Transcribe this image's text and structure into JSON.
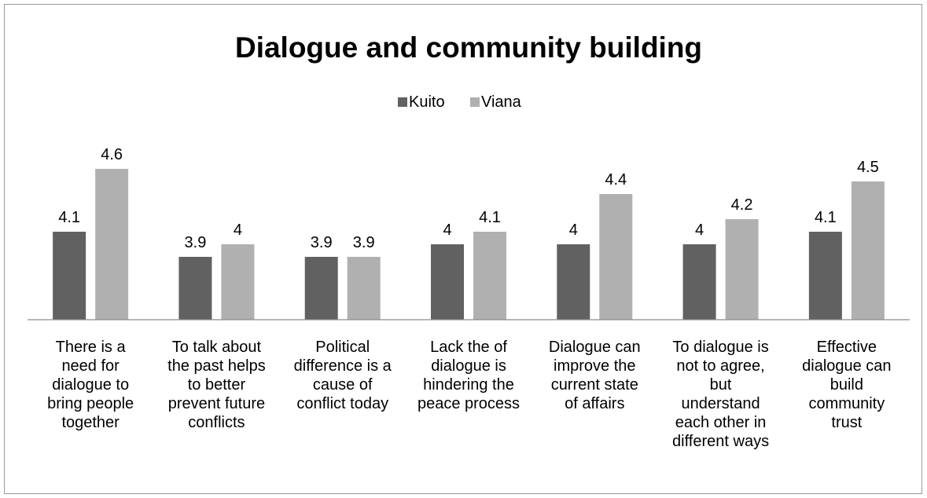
{
  "chart_data": {
    "type": "bar",
    "title": "Dialogue and community building",
    "categories": [
      [
        "There is a",
        "need for",
        "dialogue to",
        "bring people",
        "together"
      ],
      [
        "To talk about",
        "the past helps",
        "to better",
        "prevent future",
        "conflicts"
      ],
      [
        "Political",
        "difference is a",
        "cause of",
        "conflict today"
      ],
      [
        "Lack the of",
        "dialogue is",
        "hindering the",
        "peace process"
      ],
      [
        "Dialogue can",
        "improve the",
        "current state",
        "of affairs"
      ],
      [
        "To dialogue is",
        "not to agree,",
        "but",
        "understand",
        "each other in",
        "different ways"
      ],
      [
        "Effective",
        "dialogue can",
        "build",
        "community",
        "trust"
      ]
    ],
    "series": [
      {
        "name": "Kuito",
        "color": "#616161",
        "values": [
          4.1,
          3.9,
          3.9,
          4,
          4,
          4,
          4.1
        ]
      },
      {
        "name": "Viana",
        "color": "#b0b0b0",
        "values": [
          4.6,
          4,
          3.9,
          4.1,
          4.4,
          4.2,
          4.5
        ]
      }
    ],
    "legend_position": "top",
    "grid": false,
    "xlabel": "",
    "ylabel": ""
  }
}
